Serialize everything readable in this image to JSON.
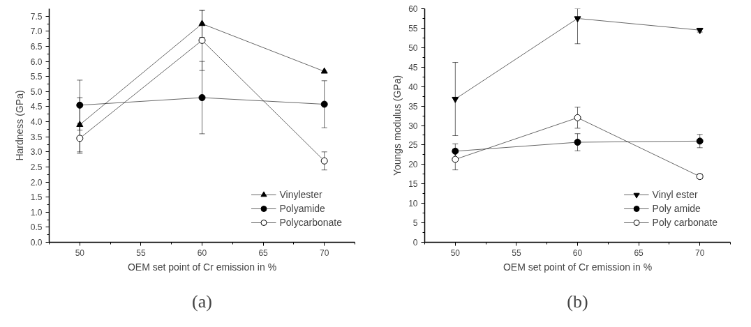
{
  "chart_data": [
    {
      "type": "line",
      "xlabel": "OEM set point of Cr emission in %",
      "ylabel": "Hardness (GPa)",
      "x": [
        50,
        60,
        70
      ],
      "xlim": [
        47.5,
        72.5
      ],
      "xticks": [
        50,
        55,
        60,
        65,
        70
      ],
      "ylim": [
        0,
        7.75
      ],
      "yticks": [
        {
          "value": 0,
          "label": "0.0"
        },
        0.5,
        {
          "value": 1,
          "label": "1.0"
        },
        1.5,
        {
          "value": 2,
          "label": "2.0"
        },
        2.5,
        {
          "value": 3,
          "label": "3.0"
        },
        3.5,
        {
          "value": 4,
          "label": "4.0"
        },
        4.5,
        {
          "value": 5,
          "label": "5.0"
        },
        5.5,
        {
          "value": 6,
          "label": "6.0"
        },
        6.5,
        {
          "value": 7,
          "label": "7.0"
        },
        7.5
      ],
      "grid": false,
      "legend": "bottom right",
      "annotations": [
        "(a)"
      ],
      "series": [
        {
          "name": "Vinylester",
          "color": "#000000",
          "marker": "triangle",
          "values": [
            3.9,
            7.25,
            5.67
          ],
          "errors": [
            0.9,
            0.45,
            null
          ]
        },
        {
          "name": "Polyamide",
          "color": "#000000",
          "marker": "circle",
          "values": [
            4.55,
            4.8,
            4.58
          ],
          "errors": [
            0.83,
            1.2,
            0.78
          ]
        },
        {
          "name": "Polycarbonate",
          "color": "#000000",
          "marker": "circle_open",
          "values": [
            3.45,
            6.7,
            2.7
          ],
          "errors": [
            0.5,
            1.0,
            0.3
          ]
        }
      ]
    },
    {
      "type": "line",
      "xlabel": "OEM set point of Cr emission in %",
      "ylabel": "Youngs modulus (GPa)",
      "x": [
        50,
        60,
        70
      ],
      "xlim": [
        47.5,
        72.5
      ],
      "xticks": [
        50,
        55,
        60,
        65,
        70
      ],
      "ylim": [
        0,
        60
      ],
      "yticks": [
        0,
        5,
        10,
        15,
        20,
        25,
        30,
        35,
        40,
        45,
        50,
        55,
        60
      ],
      "grid": false,
      "legend": "bottom right",
      "annotations": [
        "(b)"
      ],
      "series": [
        {
          "name": "Vinyl ester",
          "color": "#000000",
          "marker": "triangle_down",
          "values": [
            36.8,
            57.5,
            54.5
          ],
          "errors": [
            9.4,
            [
              51,
              60
            ],
            0.5
          ]
        },
        {
          "name": "Poly amide",
          "color": "#000000",
          "marker": "circle",
          "values": [
            23.4,
            25.7,
            26
          ],
          "errors": [
            1.9,
            2.2,
            1.7
          ]
        },
        {
          "name": "Poly carbonate",
          "color": "#000000",
          "marker": "circle_open",
          "values": [
            21.3,
            32,
            16.9
          ],
          "errors": [
            2.7,
            2.7,
            0.6
          ]
        }
      ]
    }
  ]
}
